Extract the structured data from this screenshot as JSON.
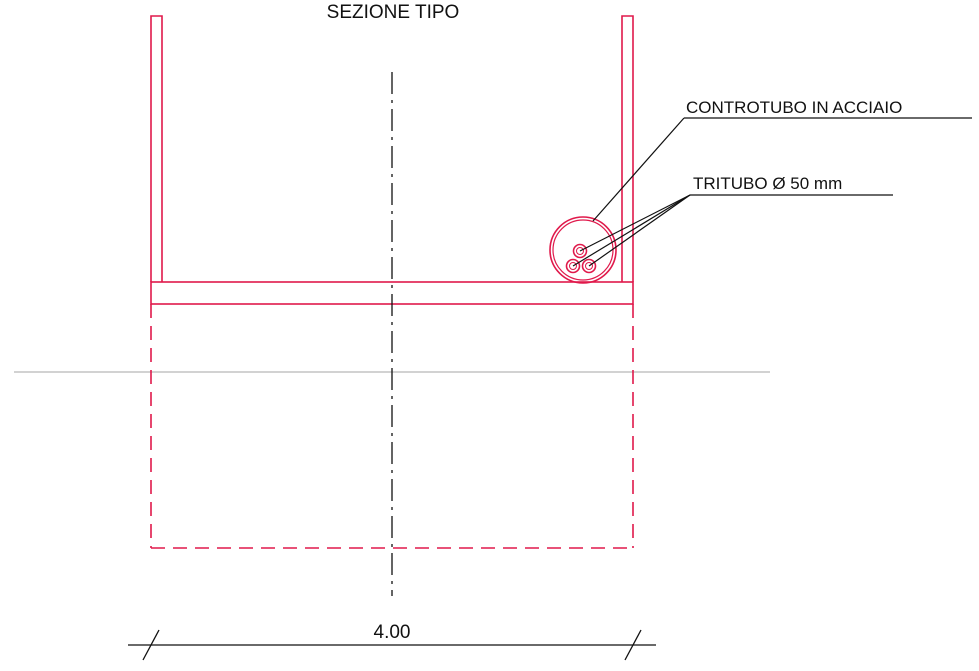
{
  "drawing": {
    "title": "SEZIONE TIPO",
    "labels": {
      "casing": "CONTROTUBO IN ACCIAIO",
      "triduct": "TRITUBO Ø 50 mm",
      "width_dimension": "4.00"
    },
    "colors": {
      "structure": "#e0194b",
      "annotation": "#111111",
      "ground": "#b8b8b8",
      "background": "#ffffff"
    }
  }
}
